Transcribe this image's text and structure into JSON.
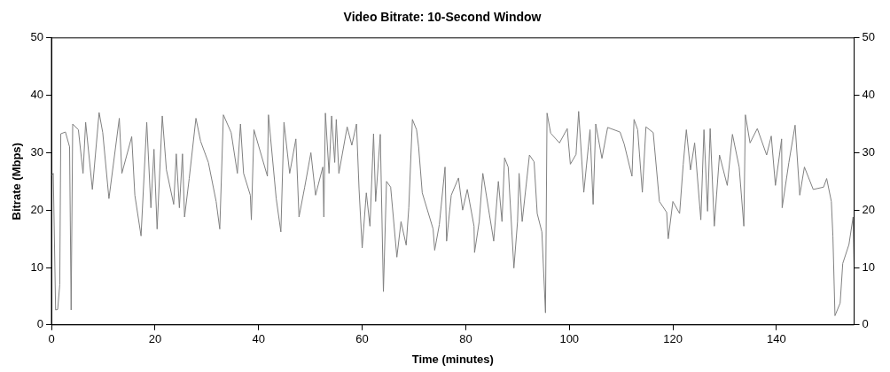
{
  "chart_data": {
    "type": "line",
    "title": "Video Bitrate: 10-Second Window",
    "xlabel": "Time (minutes)",
    "ylabel": "Bitrate (Mbps)",
    "x": [
      0,
      0.35,
      0.8,
      1.2,
      1.6,
      1.8,
      2.7,
      3.5,
      3.8,
      4.1,
      5.2,
      6.1,
      6.6,
      7.9,
      9.2,
      9.9,
      11.1,
      13.1,
      13.6,
      15.5,
      16.1,
      17.3,
      18.4,
      19.2,
      19.8,
      20.4,
      21.4,
      22.2,
      23.6,
      24.1,
      24.7,
      25.3,
      25.7,
      26.6,
      27.9,
      28.8,
      30.3,
      31.8,
      32.5,
      33.2,
      34.7,
      35.9,
      36.5,
      37.1,
      38.4,
      38.6,
      39.1,
      41.7,
      41.9,
      43.4,
      44.3,
      44.9,
      46,
      47.2,
      47.8,
      48.9,
      50.1,
      51,
      52.4,
      52.6,
      52.9,
      53.6,
      54.1,
      54.7,
      55,
      55.5,
      57.1,
      58,
      58.9,
      59.4,
      60,
      60.8,
      61.5,
      62.2,
      62.6,
      63.5,
      64.1,
      64.7,
      65.5,
      66.7,
      67.5,
      68.5,
      69,
      69.7,
      70.5,
      70.9,
      71.6,
      73.7,
      74,
      74.9,
      76,
      76.3,
      77.2,
      78.6,
      79.4,
      80.3,
      81.6,
      81.7,
      82.6,
      83.3,
      85.4,
      86.3,
      87,
      87.5,
      88.2,
      89.3,
      90,
      90.3,
      90.9,
      92.3,
      93.2,
      93.8,
      94.7,
      95.4,
      95.7,
      96.4,
      98.1,
      99.6,
      100.2,
      101.3,
      101.8,
      102.8,
      104,
      104.6,
      105.1,
      106.3,
      107.4,
      109.8,
      110.6,
      112.1,
      112.5,
      113.2,
      114.1,
      114.8,
      116.2,
      117.4,
      118.8,
      119.1,
      120,
      121.3,
      122,
      122.6,
      123.4,
      124.2,
      125.4,
      126,
      126.7,
      127.2,
      128,
      129,
      130.5,
      131.5,
      132.8,
      133.7,
      134,
      134.9,
      136.3,
      138.1,
      139,
      139.8,
      141,
      141.1,
      142.4,
      143.6,
      144.5,
      145.4,
      147.1,
      149.1,
      149.7,
      150.6,
      150.9,
      151.3,
      152.3,
      152.8,
      154,
      154.8,
      155
    ],
    "series": [
      {
        "color": "#808080",
        "values": [
          26,
          26.4,
          2.6,
          2.7,
          7,
          33.3,
          33.6,
          31,
          2.6,
          35,
          34,
          26.4,
          35.3,
          23.6,
          37,
          33.5,
          22,
          36,
          26.4,
          32.8,
          22.6,
          15.5,
          35.3,
          20.4,
          30.6,
          16.7,
          36.4,
          27,
          21,
          29.8,
          20.4,
          29.8,
          18.8,
          25.5,
          36,
          32,
          28.3,
          21.5,
          16.7,
          36.6,
          33.5,
          26.4,
          35,
          26.4,
          22.6,
          18.3,
          34,
          25.9,
          36.6,
          22,
          16.2,
          35.3,
          26.4,
          32.4,
          18.8,
          24,
          30,
          22.6,
          27.5,
          18.8,
          36.9,
          26.4,
          36.4,
          28.3,
          35.8,
          26.4,
          34.5,
          31.3,
          35,
          23.6,
          13.4,
          23,
          17.2,
          33.3,
          21.5,
          33.2,
          5.8,
          25,
          24,
          11.8,
          18,
          13.9,
          20.4,
          35.8,
          34,
          31,
          23,
          16.7,
          13,
          17.5,
          27.5,
          14.6,
          22.6,
          25.6,
          20,
          23.6,
          17.2,
          12.6,
          18,
          26.4,
          14.6,
          25,
          18,
          29.1,
          27.5,
          9.9,
          18,
          26.4,
          18,
          29.6,
          28.4,
          19.4,
          16.2,
          2.1,
          36.9,
          33.4,
          31.7,
          34.2,
          28,
          29.7,
          37.2,
          23.1,
          34,
          21,
          35,
          29,
          34.4,
          33.6,
          31.5,
          25.9,
          35.8,
          34,
          23.1,
          34.5,
          33.5,
          21.5,
          19.6,
          15,
          21.5,
          19.4,
          28,
          34,
          27,
          31.7,
          18.3,
          34,
          19.8,
          34.2,
          17.2,
          29.6,
          24.3,
          33.2,
          27.5,
          17.2,
          36.6,
          31.7,
          34.2,
          29.6,
          32.9,
          24.3,
          32.4,
          20.4,
          28.3,
          34.8,
          22.6,
          27.5,
          23.6,
          24,
          25.5,
          21.5,
          15.5,
          1.6,
          3.8,
          10.7,
          14,
          18.8,
          10
        ]
      }
    ],
    "xlim": [
      0,
      155
    ],
    "xticks": [
      0,
      20,
      40,
      60,
      80,
      100,
      120,
      140
    ],
    "ylim": [
      0,
      50
    ],
    "yticks": [
      0,
      10,
      20,
      30,
      40,
      50
    ],
    "y2lim": [
      0,
      50
    ],
    "y2ticks": [
      0,
      10,
      20,
      30,
      40,
      50
    ],
    "grid": false,
    "legend": false,
    "marker": "none",
    "line_style": "solid"
  }
}
